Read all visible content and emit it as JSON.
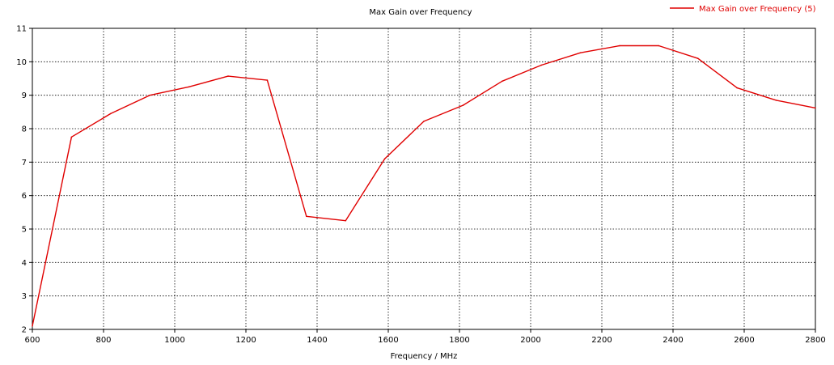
{
  "chart_data": {
    "type": "line",
    "title": "Max Gain over Frequency",
    "xlabel": "Frequency / MHz",
    "ylabel": "",
    "xlim": [
      600,
      2800
    ],
    "ylim": [
      2,
      11
    ],
    "xticks": [
      600,
      800,
      1000,
      1200,
      1400,
      1600,
      1800,
      2000,
      2200,
      2400,
      2600,
      2800
    ],
    "yticks": [
      2,
      3,
      4,
      5,
      6,
      7,
      8,
      9,
      10,
      11
    ],
    "grid": true,
    "legend_position": "top-right",
    "series": [
      {
        "name": "Max Gain over Frequency (5)",
        "color": "#e00000",
        "x": [
          600,
          710,
          820,
          930,
          1040,
          1150,
          1260,
          1370,
          1480,
          1590,
          1700,
          1810,
          1920,
          2030,
          2140,
          2250,
          2360,
          2470,
          2580,
          2690,
          2800
        ],
        "y": [
          2.1,
          7.75,
          8.45,
          9.0,
          9.25,
          9.57,
          9.45,
          5.38,
          5.25,
          7.1,
          8.22,
          8.7,
          9.42,
          9.9,
          10.27,
          10.48,
          10.48,
          10.1,
          9.22,
          8.85,
          8.62
        ]
      }
    ]
  }
}
